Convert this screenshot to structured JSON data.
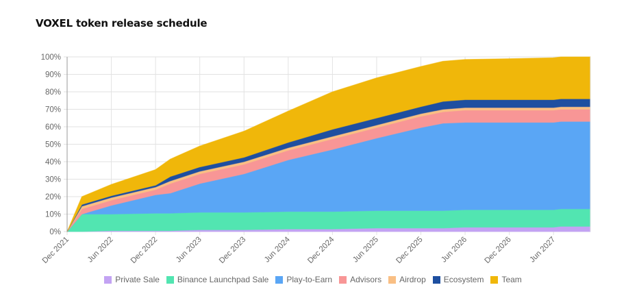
{
  "chart_data": {
    "type": "area",
    "stacked": true,
    "title": "VOXEL token release schedule",
    "xlabel": "",
    "ylabel": "",
    "ylim": [
      0,
      100
    ],
    "y_ticks": [
      "0%",
      "10%",
      "20%",
      "30%",
      "40%",
      "50%",
      "60%",
      "70%",
      "80%",
      "90%",
      "100%"
    ],
    "x_ticks": [
      "Dec 2021",
      "Jun 2022",
      "Dec 2022",
      "Jun 2023",
      "Dec 2023",
      "Jun 2024",
      "Dec 2024",
      "Jun 2025",
      "Dec 2025",
      "Jun 2026",
      "Dec 2026",
      "Jun 2027"
    ],
    "x_range": [
      "2021-12",
      "2027-11"
    ],
    "grid": true,
    "legend_position": "bottom",
    "x": [
      "2021-12",
      "2022-02",
      "2022-06",
      "2022-12",
      "2023-02",
      "2023-06",
      "2023-12",
      "2024-06",
      "2024-12",
      "2025-06",
      "2025-12",
      "2026-03",
      "2026-06",
      "2026-12",
      "2027-06",
      "2027-07",
      "2027-11"
    ],
    "series": [
      {
        "name": "Private Sale",
        "color": "#c3a3f3",
        "values": [
          0,
          0,
          0.5,
          0.5,
          0.5,
          1,
          1,
          1.5,
          1.5,
          2,
          2,
          2,
          2.5,
          2.5,
          2.5,
          3,
          3
        ]
      },
      {
        "name": "Binance Launchpad Sale",
        "color": "#52e5b1",
        "values": [
          0,
          10,
          9.5,
          10,
          10,
          10,
          10,
          10,
          10,
          10,
          10,
          10,
          10,
          10,
          10,
          10,
          10
        ]
      },
      {
        "name": "Play-to-Earn",
        "color": "#5aa6f5",
        "values": [
          0,
          0,
          5,
          10.5,
          11.5,
          16.5,
          22,
          29.5,
          35.5,
          41.5,
          47.5,
          50,
          50,
          50,
          50,
          50,
          50
        ]
      },
      {
        "name": "Advisors",
        "color": "#f89696",
        "values": [
          0,
          3,
          3,
          3,
          5.5,
          5.5,
          5.5,
          5.5,
          6,
          6,
          6.5,
          6.5,
          7,
          7,
          7,
          7,
          7
        ]
      },
      {
        "name": "Airdrop",
        "color": "#f9bf84",
        "values": [
          0,
          1.5,
          1.5,
          1.5,
          1.5,
          1.5,
          1.5,
          1.5,
          1.5,
          1.5,
          1.5,
          1.5,
          1.5,
          1.5,
          1.5,
          1.5,
          1.5
        ]
      },
      {
        "name": "Ecosystem",
        "color": "#1e4fa0",
        "values": [
          0,
          1,
          1,
          1,
          2.5,
          2.5,
          2.5,
          3,
          4,
          4,
          4,
          4.5,
          4.5,
          4.5,
          4.5,
          4.5,
          4.5
        ]
      },
      {
        "name": "Team",
        "color": "#f0b70a",
        "values": [
          0,
          4.5,
          6.5,
          9,
          10,
          12,
          15,
          18,
          21.5,
          23,
          23,
          23,
          23,
          23.5,
          24,
          24,
          24
        ]
      }
    ]
  }
}
